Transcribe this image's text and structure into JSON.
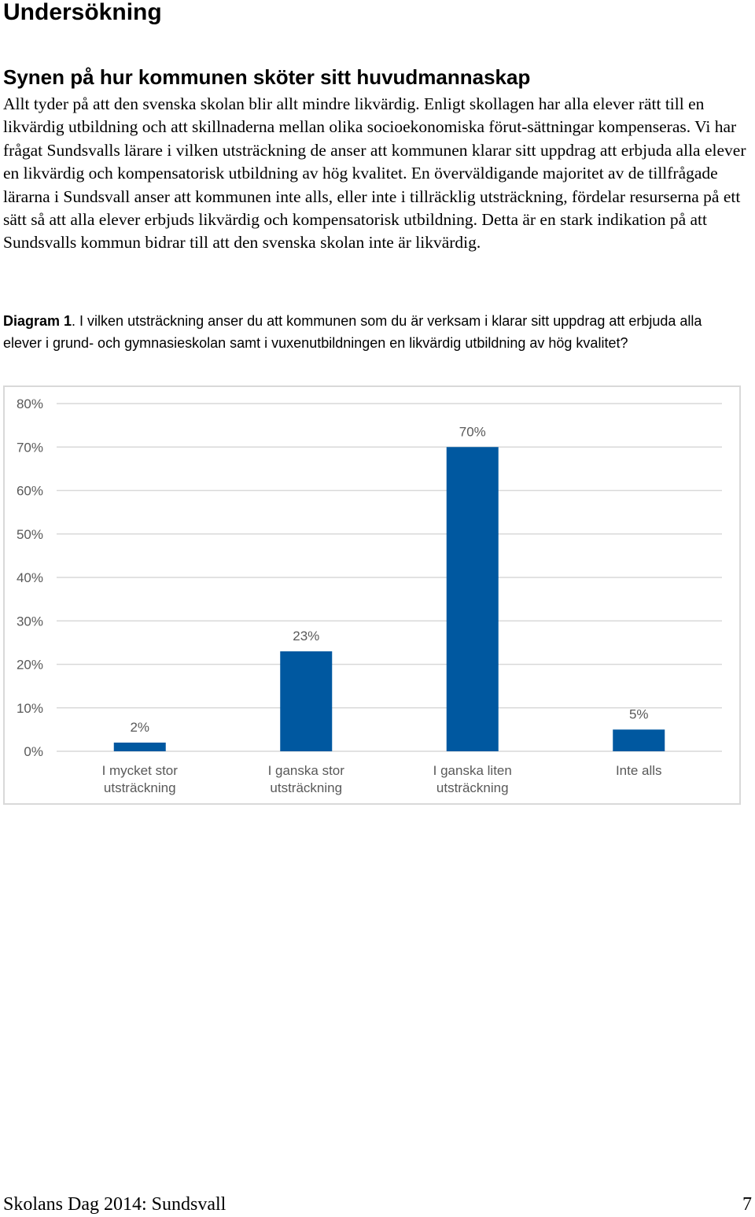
{
  "page": {
    "title": "Undersökning",
    "section_title": "Synen på hur kommunen sköter sitt huvudmannaskap",
    "body_text": "Allt tyder på att den svenska skolan blir allt mindre likvärdig. Enligt skollagen har alla elever rätt till en likvärdig utbildning och att skillnaderna mellan olika socioekonomiska förut-sättningar kompenseras. Vi har frågat Sundsvalls lärare i vilken utsträckning de anser att kommunen klarar sitt uppdrag att erbjuda alla elever en likvärdig och kompensatorisk utbildning av hög kvalitet. En överväldigande majoritet av de tillfrågade lärarna i Sundsvall anser att kommunen inte alls, eller inte i tillräcklig utsträckning, fördelar resurserna på ett sätt så att alla elever erbjuds likvärdig och kompensatorisk utbildning. Detta är en stark indikation på att Sundsvalls kommun bidrar till att den svenska skolan inte är likvärdig."
  },
  "caption": {
    "label": "Diagram 1",
    "text": ". I vilken utsträckning anser du att kommunen som du är verksam i klarar sitt uppdrag att erbjuda alla elever i grund- och gymnasieskolan samt i vuxenutbildningen en likvärdig utbildning av hög kvalitet?"
  },
  "chart_data": {
    "type": "bar",
    "categories": [
      [
        "I mycket stor",
        "utsträckning"
      ],
      [
        "I ganska stor",
        "utsträckning"
      ],
      [
        "I ganska liten",
        "utsträckning"
      ],
      [
        "Inte alls"
      ]
    ],
    "values": [
      2,
      23,
      70,
      5
    ],
    "data_labels": [
      "2%",
      "23%",
      "70%",
      "5%"
    ],
    "ylim": [
      0,
      80
    ],
    "y_ticks": [
      0,
      10,
      20,
      30,
      40,
      50,
      60,
      70,
      80
    ],
    "y_tick_labels": [
      "0%",
      "10%",
      "20%",
      "30%",
      "40%",
      "50%",
      "60%",
      "70%",
      "80%"
    ],
    "grid": true,
    "legend": "none",
    "bar_color": "#0058a0",
    "grid_color": "#d9d9d9",
    "label_color": "#595959"
  },
  "footer": {
    "left": "Skolans Dag 2014: Sundsvall",
    "page_number": "7"
  }
}
